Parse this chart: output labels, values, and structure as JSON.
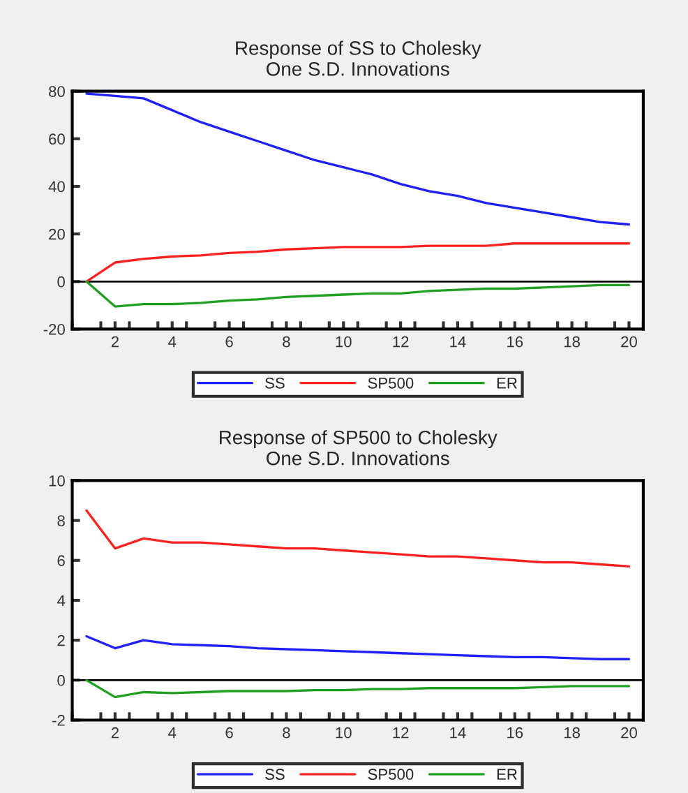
{
  "chart_data": [
    {
      "type": "line",
      "title": "Response of SS to Cholesky\nOne S.D. Innovations",
      "x": [
        1,
        2,
        3,
        4,
        5,
        6,
        7,
        8,
        9,
        10,
        11,
        12,
        13,
        14,
        15,
        16,
        17,
        18,
        19,
        20
      ],
      "series": [
        {
          "name": "SS",
          "color": "#2020ff",
          "values": [
            79,
            78,
            77,
            72,
            67,
            63,
            59,
            55,
            51,
            48,
            45,
            41,
            38,
            36,
            33,
            31,
            29,
            27,
            25,
            24
          ]
        },
        {
          "name": "SP500",
          "color": "#ff2020",
          "values": [
            0,
            8,
            9.5,
            10.5,
            11,
            12,
            12.5,
            13.5,
            14,
            14.5,
            14.5,
            14.5,
            15,
            15,
            15,
            16,
            16,
            16,
            16,
            16
          ]
        },
        {
          "name": "ER",
          "color": "#20a020",
          "values": [
            0,
            -10.5,
            -9.5,
            -9.5,
            -9,
            -8,
            -7.5,
            -6.5,
            -6,
            -5.5,
            -5,
            -5,
            -4,
            -3.5,
            -3,
            -3,
            -2.5,
            -2,
            -1.5,
            -1.5
          ]
        }
      ],
      "xlim": [
        0.5,
        20.5
      ],
      "xticks": [
        {
          "value": 0.5,
          "label": null
        },
        {
          "value": 1.5,
          "label": null
        },
        2,
        {
          "value": 2.5,
          "label": null
        },
        {
          "value": 3.5,
          "label": null
        },
        4,
        {
          "value": 4.5,
          "label": null
        },
        {
          "value": 5.5,
          "label": null
        },
        6,
        {
          "value": 6.5,
          "label": null
        },
        {
          "value": 7.5,
          "label": null
        },
        8,
        {
          "value": 8.5,
          "label": null
        },
        {
          "value": 9.5,
          "label": null
        },
        10,
        {
          "value": 10.5,
          "label": null
        },
        {
          "value": 11.5,
          "label": null
        },
        12,
        {
          "value": 12.5,
          "label": null
        },
        {
          "value": 13.5,
          "label": null
        },
        14,
        {
          "value": 14.5,
          "label": null
        },
        {
          "value": 15.5,
          "label": null
        },
        16,
        {
          "value": 16.5,
          "label": null
        },
        {
          "value": 17.5,
          "label": null
        },
        18,
        {
          "value": 18.5,
          "label": null
        },
        {
          "value": 19.5,
          "label": null
        },
        20,
        {
          "value": 20.5,
          "label": null
        }
      ],
      "ylim": [
        -20,
        80
      ],
      "yticks": [
        -20,
        0,
        20,
        40,
        60,
        80
      ],
      "ref_lines": [
        {
          "axis": "y",
          "value": 0,
          "color": "#000000"
        }
      ],
      "legend": "bottom",
      "grid": false
    },
    {
      "type": "line",
      "title": "Response of SP500 to Cholesky\nOne S.D. Innovations",
      "x": [
        1,
        2,
        3,
        4,
        5,
        6,
        7,
        8,
        9,
        10,
        11,
        12,
        13,
        14,
        15,
        16,
        17,
        18,
        19,
        20
      ],
      "series": [
        {
          "name": "SS",
          "color": "#2020ff",
          "values": [
            2.2,
            1.6,
            2.0,
            1.8,
            1.75,
            1.7,
            1.6,
            1.55,
            1.5,
            1.45,
            1.4,
            1.35,
            1.3,
            1.25,
            1.2,
            1.15,
            1.15,
            1.1,
            1.05,
            1.05
          ]
        },
        {
          "name": "SP500",
          "color": "#ff2020",
          "values": [
            8.5,
            6.6,
            7.1,
            6.9,
            6.9,
            6.8,
            6.7,
            6.6,
            6.6,
            6.5,
            6.4,
            6.3,
            6.2,
            6.2,
            6.1,
            6.0,
            5.9,
            5.9,
            5.8,
            5.7
          ]
        },
        {
          "name": "ER",
          "color": "#20a020",
          "values": [
            0,
            -0.85,
            -0.6,
            -0.65,
            -0.6,
            -0.55,
            -0.55,
            -0.55,
            -0.5,
            -0.5,
            -0.45,
            -0.45,
            -0.4,
            -0.4,
            -0.4,
            -0.4,
            -0.35,
            -0.3,
            -0.3,
            -0.3
          ]
        }
      ],
      "xlim": [
        0.5,
        20.5
      ],
      "xticks": [
        {
          "value": 0.5,
          "label": null
        },
        {
          "value": 1.5,
          "label": null
        },
        2,
        {
          "value": 2.5,
          "label": null
        },
        {
          "value": 3.5,
          "label": null
        },
        4,
        {
          "value": 4.5,
          "label": null
        },
        {
          "value": 5.5,
          "label": null
        },
        6,
        {
          "value": 6.5,
          "label": null
        },
        {
          "value": 7.5,
          "label": null
        },
        8,
        {
          "value": 8.5,
          "label": null
        },
        {
          "value": 9.5,
          "label": null
        },
        10,
        {
          "value": 10.5,
          "label": null
        },
        {
          "value": 11.5,
          "label": null
        },
        12,
        {
          "value": 12.5,
          "label": null
        },
        {
          "value": 13.5,
          "label": null
        },
        14,
        {
          "value": 14.5,
          "label": null
        },
        {
          "value": 15.5,
          "label": null
        },
        16,
        {
          "value": 16.5,
          "label": null
        },
        {
          "value": 17.5,
          "label": null
        },
        18,
        {
          "value": 18.5,
          "label": null
        },
        {
          "value": 19.5,
          "label": null
        },
        20,
        {
          "value": 20.5,
          "label": null
        }
      ],
      "ylim": [
        -2,
        10
      ],
      "yticks": [
        -2,
        0,
        2,
        4,
        6,
        8,
        10
      ],
      "ref_lines": [
        {
          "axis": "y",
          "value": 0,
          "color": "#000000"
        }
      ],
      "legend": "bottom",
      "grid": false
    }
  ]
}
